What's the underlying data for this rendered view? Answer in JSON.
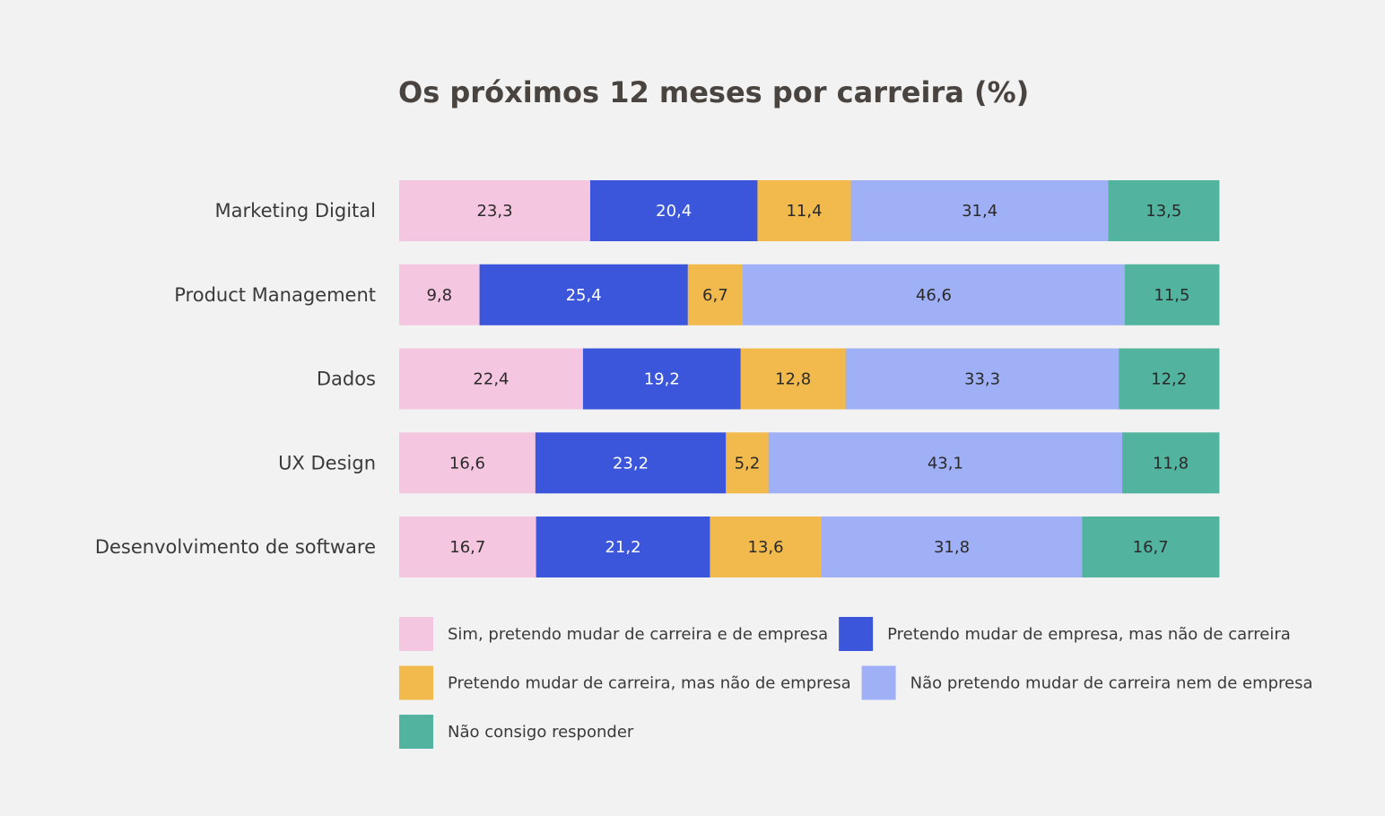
{
  "chart_data": {
    "type": "bar",
    "orientation": "horizontal",
    "stacked": true,
    "title": "Os próximos 12 meses por carreira (%)",
    "categories": [
      "Marketing Digital",
      "Product Management",
      "Dados",
      "UX Design",
      "Desenvolvimento de software"
    ],
    "series": [
      {
        "name": "Sim, pretendo mudar de carreira e de empresa",
        "color": "#f5c6df",
        "label_color": "#2a2a2a",
        "values": [
          23.3,
          9.8,
          22.4,
          16.6,
          16.7
        ],
        "labels": [
          "23,3",
          "9,8",
          "22,4",
          "16,6",
          "16,7"
        ]
      },
      {
        "name": "Pretendo mudar de empresa, mas não de carreira",
        "color": "#3b55db",
        "label_color": "#ffffff",
        "values": [
          20.4,
          25.4,
          19.2,
          23.2,
          21.2
        ],
        "labels": [
          "20,4",
          "25,4",
          "19,2",
          "23,2",
          "21,2"
        ]
      },
      {
        "name": "Pretendo mudar de carreira, mas não de empresa",
        "color": "#f2b94c",
        "label_color": "#2a2a2a",
        "values": [
          11.4,
          6.7,
          12.8,
          5.2,
          13.6
        ],
        "labels": [
          "11,4",
          "6,7",
          "12,8",
          "5,2",
          "13,6"
        ]
      },
      {
        "name": "Não pretendo mudar de carreira nem de empresa",
        "color": "#a0b0f7",
        "label_color": "#2a2a2a",
        "values": [
          31.4,
          46.6,
          33.3,
          43.1,
          31.8
        ],
        "labels": [
          "31,4",
          "46,6",
          "33,3",
          "43,1",
          "31,8"
        ]
      },
      {
        "name": "Não consigo responder",
        "color": "#52b39e",
        "label_color": "#2a2a2a",
        "values": [
          13.5,
          11.5,
          12.2,
          11.8,
          16.7
        ],
        "labels": [
          "13,5",
          "11,5",
          "12,2",
          "11,8",
          "16,7"
        ]
      }
    ],
    "legend_position": "bottom",
    "grid": false
  }
}
